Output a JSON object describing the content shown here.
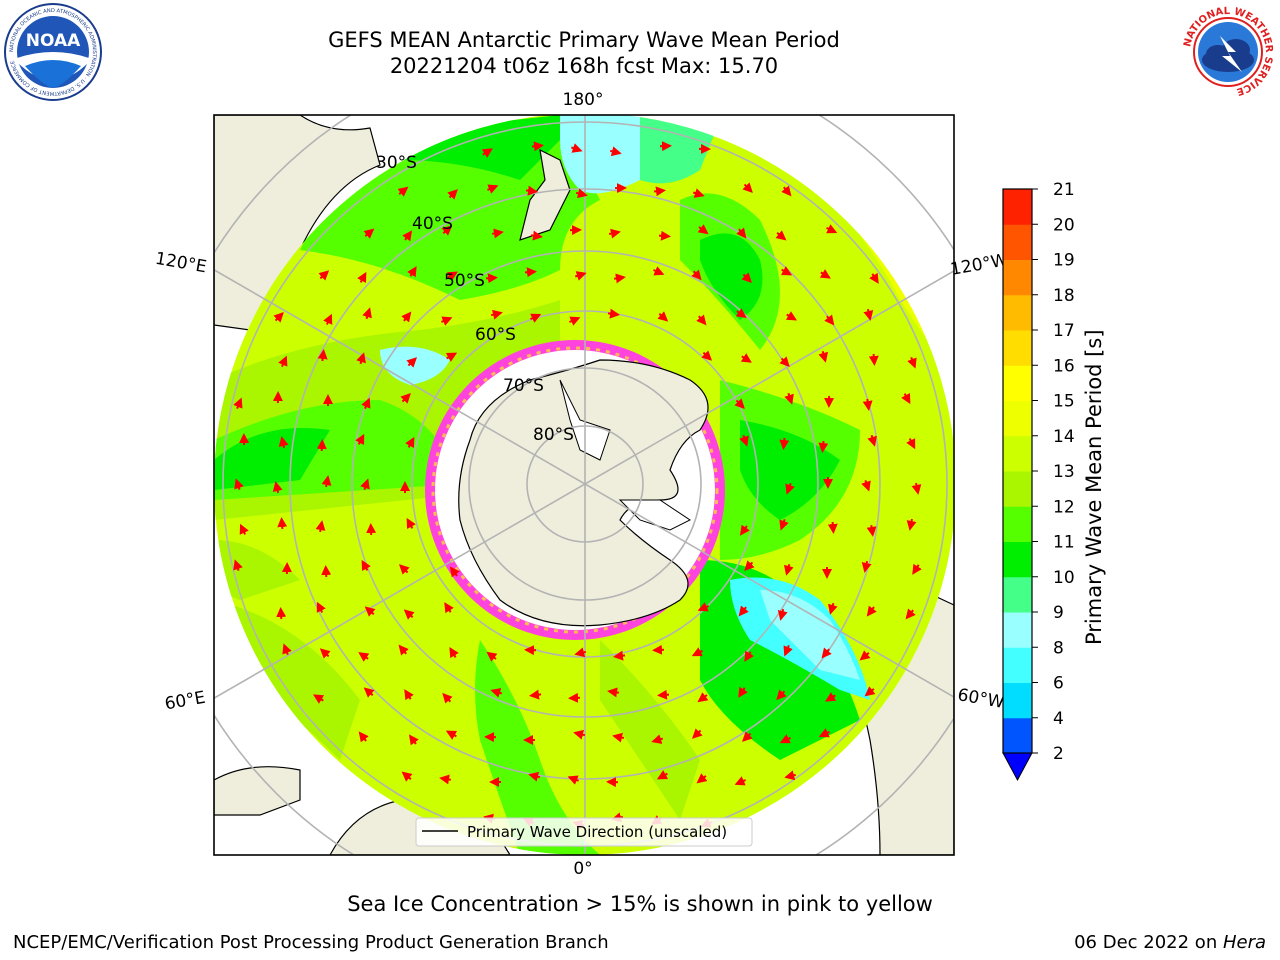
{
  "header": {
    "title_line1": "GEFS MEAN Antarctic Primary Wave Mean Period",
    "title_line2": "20221204 t06z 168h fcst   Max: 15.70"
  },
  "logos": {
    "left": {
      "name": "noaa-logo",
      "text": "NOAA",
      "ring_text": "NATIONAL OCEANIC AND ATMOSPHERIC ADMINISTRATION · U.S. DEPARTMENT OF COMMERCE"
    },
    "right": {
      "name": "nws-logo",
      "ring_text": "NATIONAL WEATHER SERVICE"
    }
  },
  "map": {
    "longitude_labels": {
      "top": "180°",
      "upper_left": "120°E",
      "upper_right": "120°W",
      "lower_left": "60°E",
      "lower_right": "60°W",
      "bottom": "0°"
    },
    "latitude_labels": [
      "30°S",
      "40°S",
      "50°S",
      "60°S",
      "70°S",
      "80°S"
    ],
    "legend": "Primary Wave Direction (unscaled)",
    "colors": {
      "land": "#efeedd",
      "sea_ice_edge": "#ff44dd",
      "arrow": "#ff0000",
      "grid": "#b3b3b3"
    }
  },
  "colorbar": {
    "label": "Primary Wave Mean Period [s]",
    "ticks": [
      "2",
      "4",
      "6",
      "8",
      "9",
      "10",
      "11",
      "12",
      "13",
      "14",
      "15",
      "16",
      "17",
      "18",
      "19",
      "20",
      "21"
    ],
    "colors": [
      "#0055ff",
      "#00ddff",
      "#44ffff",
      "#99ffff",
      "#44ff88",
      "#00ee00",
      "#55ff00",
      "#aaf500",
      "#ccff00",
      "#eeff00",
      "#ffff00",
      "#ffdd00",
      "#ffbb00",
      "#ff8800",
      "#ff5500",
      "#ff2200",
      "#ff0000"
    ],
    "extend_color": "#0000ff"
  },
  "footer": {
    "note": "Sea Ice Concentration > 15% is shown in pink to yellow",
    "credit": "NCEP/EMC/Verification Post Processing Product Generation Branch",
    "date": "06 Dec 2022 on ",
    "machine": "Hera"
  }
}
